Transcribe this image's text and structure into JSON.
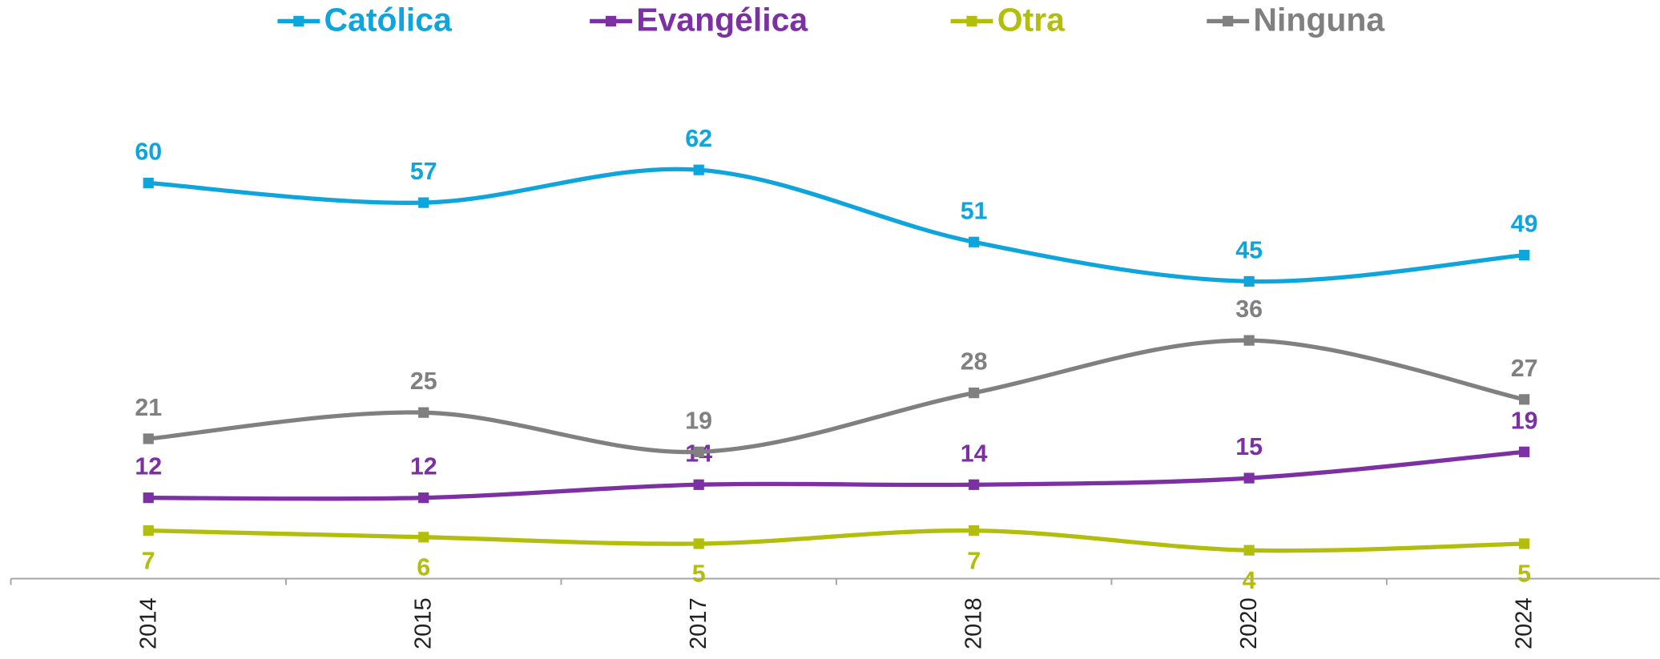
{
  "chart_data": {
    "type": "line",
    "categories": [
      "2014",
      "2015",
      "2017",
      "2018",
      "2020",
      "2024"
    ],
    "series": [
      {
        "name": "Católica",
        "color": "#0ea5dc",
        "values": [
          60,
          57,
          62,
          51,
          45,
          49
        ]
      },
      {
        "name": "Evangélica",
        "color": "#7c30a3",
        "values": [
          12,
          12,
          14,
          14,
          15,
          19
        ]
      },
      {
        "name": "Otra",
        "color": "#b2bd0c",
        "values": [
          7,
          6,
          5,
          7,
          4,
          5
        ]
      },
      {
        "name": "Ninguna",
        "color": "#808080",
        "values": [
          21,
          25,
          19,
          28,
          36,
          27
        ]
      }
    ],
    "ylim": [
      0,
      80
    ]
  }
}
